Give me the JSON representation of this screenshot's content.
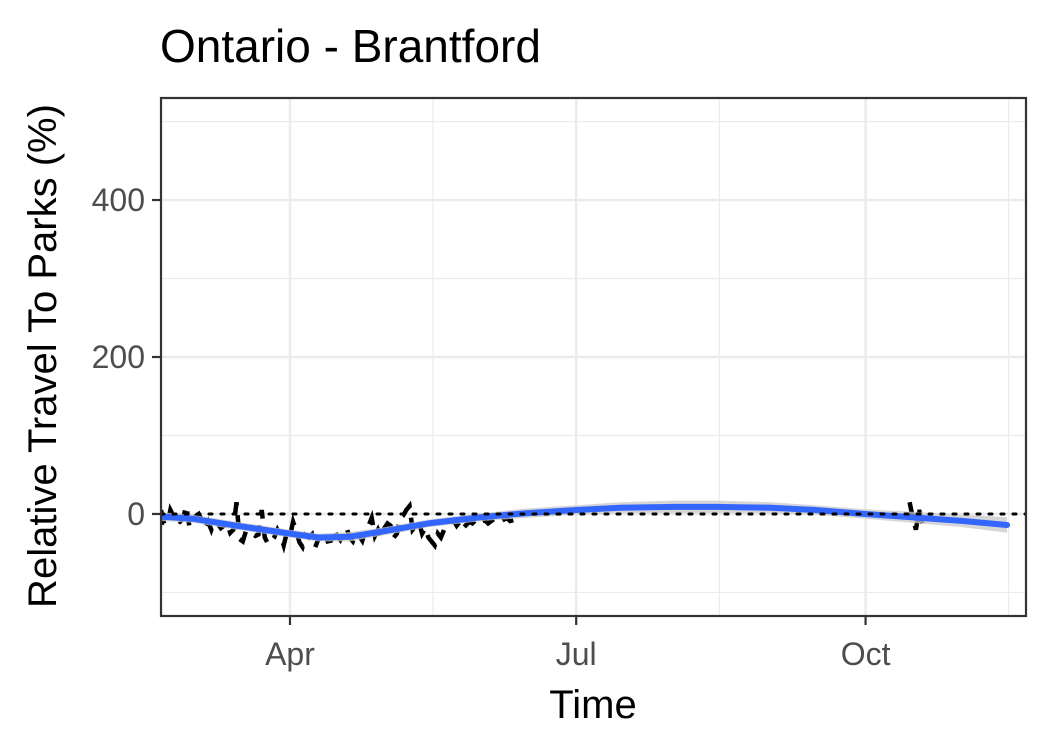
{
  "chart_data": {
    "type": "line",
    "title": "Ontario - Brantford",
    "xlabel": "Time",
    "ylabel": "Relative Travel To Parks (%)",
    "xlim": [
      "2020-02-20",
      "2020-11-21"
    ],
    "ylim": [
      -130,
      530
    ],
    "x_ticks": [
      {
        "label": "Apr",
        "date": "2020-04-01"
      },
      {
        "label": "Jul",
        "date": "2020-07-01"
      },
      {
        "label": "Oct",
        "date": "2020-10-01"
      }
    ],
    "y_ticks": [
      0,
      200,
      400
    ],
    "reference_line": {
      "y": 0,
      "style": "dotted",
      "color": "#000000"
    },
    "grid": true,
    "series": [
      {
        "style": "dashed",
        "color": "#000000",
        "x": [
          "2020-02-15",
          "2020-02-16",
          "2020-02-17",
          "2020-02-18",
          "2020-02-19",
          "2020-02-20",
          "2020-02-21",
          "2020-02-22",
          "2020-02-23",
          "2020-02-24",
          "2020-02-25",
          "2020-02-26",
          "2020-02-27",
          "2020-02-28",
          "2020-02-29",
          "2020-03-01",
          "2020-03-02",
          "2020-03-03",
          "2020-03-04",
          "2020-03-05",
          "2020-03-06",
          "2020-03-07",
          "2020-03-08",
          "2020-03-09",
          "2020-03-10",
          "2020-03-11",
          "2020-03-12",
          "2020-03-13",
          "2020-03-14",
          "2020-03-15",
          "2020-03-16",
          "2020-03-17",
          "2020-03-18",
          "2020-03-19",
          "2020-03-20",
          "2020-03-21",
          "2020-03-22",
          "2020-03-23",
          "2020-03-24",
          "2020-03-25",
          "2020-03-26",
          "2020-03-27",
          "2020-03-28",
          "2020-03-29",
          "2020-03-30",
          "2020-03-31",
          "2020-04-01",
          "2020-04-02",
          "2020-04-03",
          "2020-04-04",
          "2020-04-05",
          "2020-04-06",
          "2020-04-07",
          "2020-04-08",
          "2020-04-09",
          "2020-04-10",
          "2020-04-11",
          "2020-04-12",
          "2020-04-13",
          "2020-04-14",
          "2020-04-15",
          "2020-04-16",
          "2020-04-17",
          "2020-04-18",
          "2020-04-19",
          "2020-04-20",
          "2020-04-21",
          "2020-04-22",
          "2020-04-23",
          "2020-04-24",
          "2020-04-25",
          "2020-04-26",
          "2020-04-27",
          "2020-04-28",
          "2020-04-29",
          "2020-04-30",
          "2020-05-01",
          "2020-05-02",
          "2020-05-03",
          "2020-05-04",
          "2020-05-05",
          "2020-05-06",
          "2020-05-07",
          "2020-05-08",
          "2020-05-09",
          "2020-05-10",
          "2020-05-11",
          "2020-05-12",
          "2020-05-13",
          "2020-05-14",
          "2020-05-15",
          "2020-05-16",
          "2020-05-17",
          "2020-05-18",
          "2020-05-19",
          "2020-05-20",
          "2020-05-21",
          "2020-05-22",
          "2020-05-23",
          "2020-05-24",
          "2020-05-25",
          "2020-05-26",
          "2020-05-27",
          "2020-05-28",
          "2020-05-29",
          "2020-05-30",
          "2020-05-31",
          "2020-06-01",
          "2020-06-02",
          "2020-06-03",
          "2020-06-04",
          "2020-06-05",
          "2020-06-06",
          "2020-06-07",
          "2020-06-08",
          "2020-06-09",
          "2020-06-10",
          "2020-06-11",
          "2020-10-15",
          "2020-10-16",
          "2020-10-17",
          "2020-10-18",
          "2020-10-19"
        ],
        "y": [
          -5,
          -10,
          10,
          -5,
          -8,
          5,
          -12,
          -15,
          5,
          -3,
          -8,
          -10,
          -6,
          10,
          -15,
          -12,
          -3,
          0,
          -8,
          -18,
          -10,
          -20,
          -8,
          -12,
          -18,
          -15,
          -12,
          -24,
          -20,
          15,
          -32,
          -35,
          -22,
          -24,
          -25,
          -28,
          -26,
          5,
          -30,
          -38,
          -35,
          -30,
          -20,
          -27,
          -40,
          -24,
          -28,
          -10,
          -22,
          -36,
          -42,
          -27,
          -30,
          -26,
          -43,
          -32,
          -30,
          -22,
          -35,
          -34,
          -20,
          -28,
          -33,
          -25,
          -18,
          -30,
          -35,
          -26,
          -28,
          -34,
          -20,
          -15,
          -5,
          -28,
          -20,
          -30,
          -18,
          -12,
          -15,
          -30,
          -25,
          -5,
          -2,
          5,
          10,
          -20,
          -15,
          -10,
          -25,
          -18,
          -30,
          -35,
          -40,
          -25,
          -30,
          -20,
          -15,
          -12,
          -8,
          -15,
          -10,
          -18,
          -14,
          -10,
          -12,
          -8,
          -6,
          -10,
          -8,
          -12,
          -9,
          -6,
          -8,
          -10,
          -7,
          -5,
          -9,
          -8,
          15,
          -5,
          -20,
          5,
          -12
        ]
      },
      {
        "style": "smooth",
        "color": "#3366ff",
        "band_color": "#c8c8c8",
        "x": [
          "2020-02-15",
          "2020-03-01",
          "2020-03-15",
          "2020-04-01",
          "2020-04-10",
          "2020-04-20",
          "2020-05-01",
          "2020-05-15",
          "2020-06-01",
          "2020-06-15",
          "2020-07-01",
          "2020-07-15",
          "2020-08-01",
          "2020-08-15",
          "2020-09-01",
          "2020-09-15",
          "2020-10-01",
          "2020-10-15",
          "2020-11-01",
          "2020-11-15"
        ],
        "y": [
          -2,
          -6,
          -15,
          -25,
          -30,
          -29,
          -22,
          -12,
          -4,
          1,
          5,
          8,
          9,
          9,
          8,
          5,
          0,
          -4,
          -9,
          -14
        ],
        "band": [
          6,
          5,
          5,
          5,
          5,
          6,
          5,
          5,
          5,
          6,
          6,
          7,
          8,
          8,
          7,
          6,
          6,
          7,
          8,
          10
        ]
      }
    ]
  }
}
